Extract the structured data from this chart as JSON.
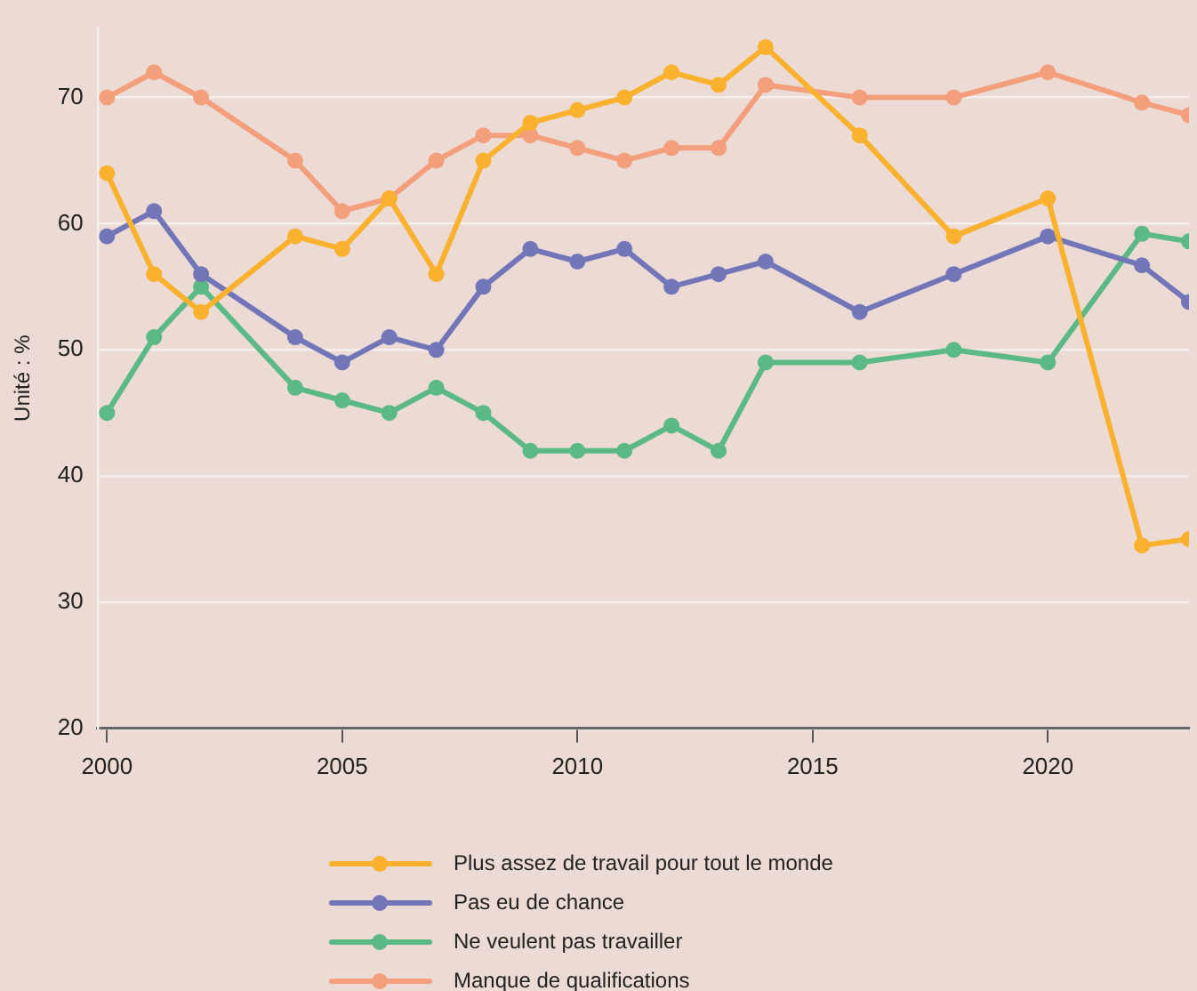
{
  "chart_data": {
    "type": "line",
    "ylabel": "Unité : %",
    "x": [
      2000,
      2001,
      2002,
      2004,
      2005,
      2006,
      2007,
      2008,
      2009,
      2010,
      2011,
      2012,
      2013,
      2014,
      2016,
      2018,
      2020,
      2022,
      2023
    ],
    "xlim": [
      1999.8,
      2023
    ],
    "xticks": [
      2000,
      2005,
      2010,
      2015,
      2020
    ],
    "ylim": [
      20,
      75.5
    ],
    "yticks": [
      20,
      30,
      40,
      50,
      60,
      70
    ],
    "grid": "y",
    "legend": "bottom",
    "marker": "circle",
    "line_style": "solid",
    "series": [
      {
        "name": "Plus assez de travail pour tout le monde",
        "color": "#f9b12e",
        "values": [
          64,
          56,
          53,
          59,
          58,
          62,
          56,
          65,
          68,
          69,
          70,
          72,
          71,
          74,
          67,
          59,
          62,
          34.5,
          35
        ]
      },
      {
        "name": "Pas eu de chance",
        "color": "#7276b8",
        "values": [
          59,
          61,
          56,
          51,
          49,
          51,
          50,
          55,
          58,
          57,
          58,
          55,
          56,
          57,
          53,
          56,
          59,
          56.7,
          53.8
        ]
      },
      {
        "name": "Ne veulent pas travailler",
        "color": "#5bb985",
        "values": [
          45,
          51,
          55,
          47,
          46,
          45,
          47,
          45,
          42,
          42,
          42,
          44,
          42,
          49,
          49,
          50,
          49,
          59.2,
          58.6
        ]
      },
      {
        "name": "Manque de qualifications",
        "color": "#f49f7c",
        "values": [
          70,
          72,
          70,
          65,
          61,
          62,
          65,
          67,
          67,
          66,
          65,
          66,
          66,
          71,
          70,
          70,
          72,
          69.6,
          68.6
        ]
      }
    ]
  }
}
